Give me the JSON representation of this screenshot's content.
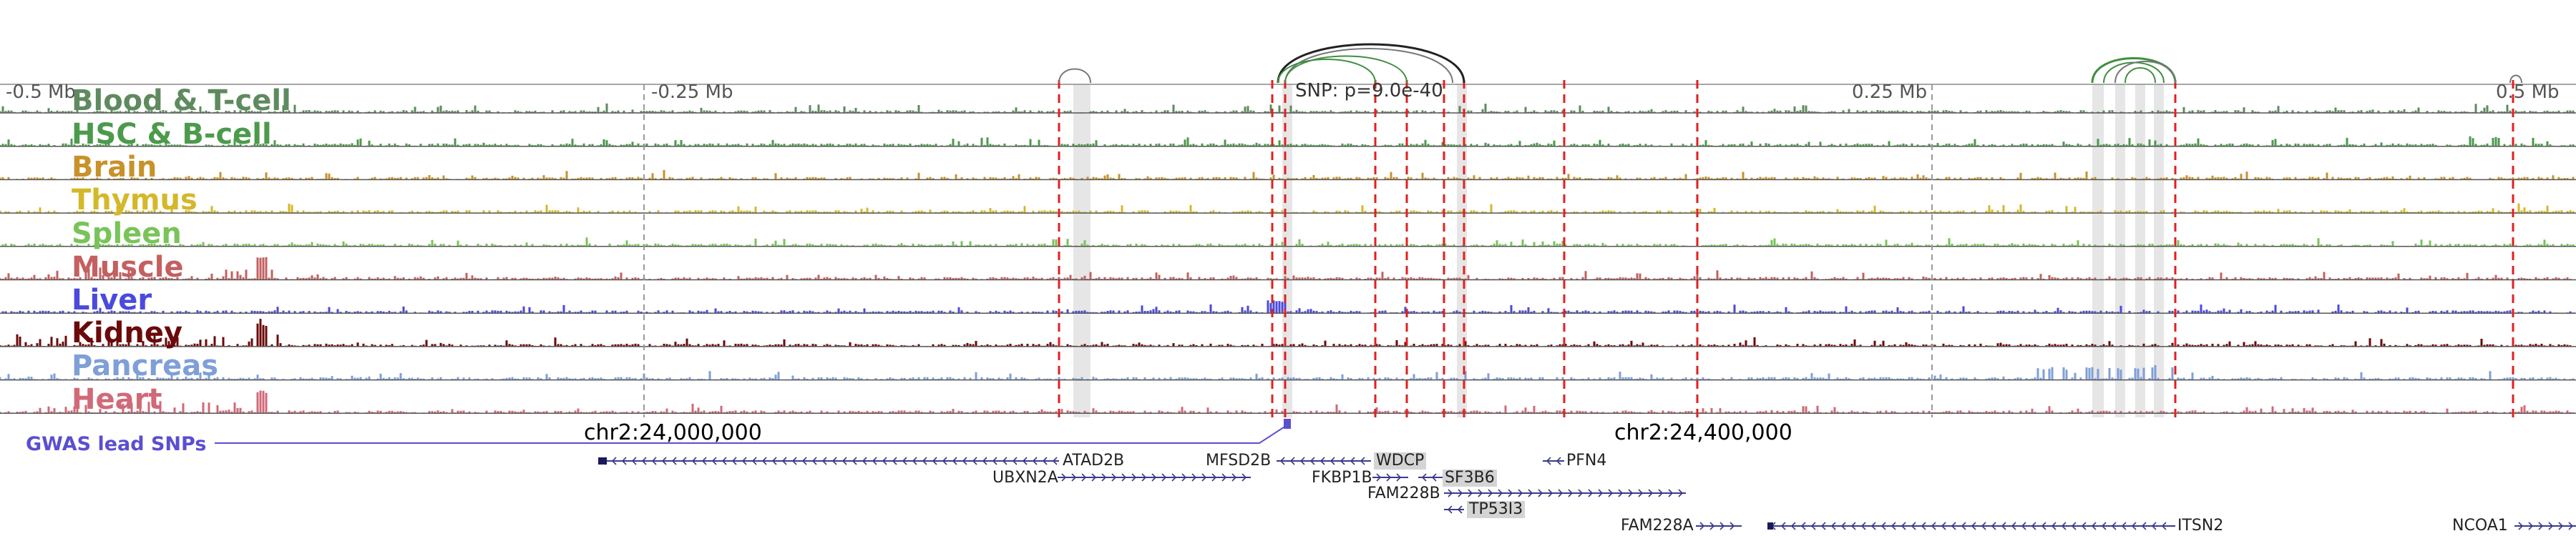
{
  "scale": {
    "left_label": "-0.5 Mb",
    "mid_left_label": "-0.25 Mb",
    "mid_right_label": "0.25 Mb",
    "right_label": "0.5 Mb"
  },
  "snp_annotation": "SNP: p=9.0e-40",
  "tracks": [
    {
      "name": "Blood & T-cell",
      "color": "#5f8a5f"
    },
    {
      "name": "HSC & B-cell",
      "color": "#4c9a4c"
    },
    {
      "name": "Brain",
      "color": "#c8922a"
    },
    {
      "name": "Thymus",
      "color": "#d4b82a"
    },
    {
      "name": "Spleen",
      "color": "#7ac35a"
    },
    {
      "name": "Muscle",
      "color": "#c46060"
    },
    {
      "name": "Liver",
      "color": "#4a4adc"
    },
    {
      "name": "Kidney",
      "color": "#6b0a0a"
    },
    {
      "name": "Pancreas",
      "color": "#7f9fd8"
    },
    {
      "name": "Heart",
      "color": "#d06a78"
    }
  ],
  "coordinates": {
    "left": "chr2:24,000,000",
    "right": "chr2:24,400,000"
  },
  "gwas_label": "GWAS lead SNPs",
  "genes": [
    {
      "name": "ATAD2B",
      "highlighted": false
    },
    {
      "name": "UBXN2A",
      "highlighted": false
    },
    {
      "name": "MFSD2B",
      "highlighted": false
    },
    {
      "name": "WDCP",
      "highlighted": true
    },
    {
      "name": "FKBP1B",
      "highlighted": false
    },
    {
      "name": "SF3B6",
      "highlighted": true
    },
    {
      "name": "FAM228B",
      "highlighted": false
    },
    {
      "name": "TP53I3",
      "highlighted": true
    },
    {
      "name": "PFN4",
      "highlighted": false
    },
    {
      "name": "FAM228A",
      "highlighted": false
    },
    {
      "name": "ITSN2",
      "highlighted": false
    },
    {
      "name": "NCOA1",
      "highlighted": false
    }
  ],
  "colors": {
    "red_marker": "#e02020",
    "gray_marker": "#bbbbbb",
    "gene_strand": "#3a3a8a",
    "gwas": "#5a4fcf",
    "arc_dark": "#222222",
    "arc_green": "#3f8f3f"
  }
}
